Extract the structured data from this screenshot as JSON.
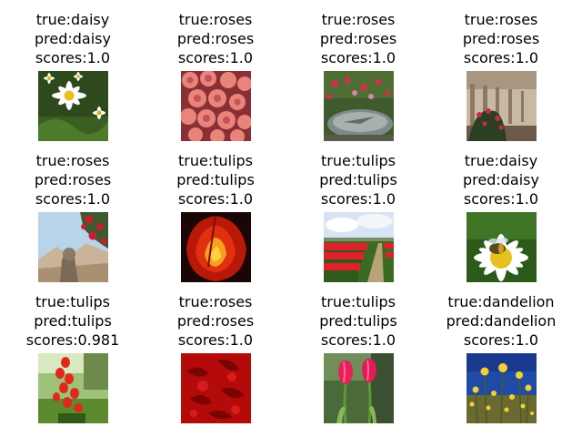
{
  "panels": [
    {
      "true_label": "true:daisy",
      "pred_label": "pred:daisy",
      "score_label": "scores:1.0",
      "image": "white-daisy-flowers-photo"
    },
    {
      "true_label": "true:roses",
      "pred_label": "pred:roses",
      "score_label": "scores:1.0",
      "image": "pink-rose-bouquet-photo"
    },
    {
      "true_label": "true:roses",
      "pred_label": "pred:roses",
      "score_label": "scores:1.0",
      "image": "sundial-garden-photo"
    },
    {
      "true_label": "true:roses",
      "pred_label": "pred:roses",
      "score_label": "scores:1.0",
      "image": "rose-bush-colonnade-photo"
    },
    {
      "true_label": "true:roses",
      "pred_label": "pred:roses",
      "score_label": "scores:1.0",
      "image": "red-roses-statue-photo"
    },
    {
      "true_label": "true:tulips",
      "pred_label": "pred:tulips",
      "score_label": "scores:1.0",
      "image": "red-tulip-closeup-photo"
    },
    {
      "true_label": "true:tulips",
      "pred_label": "pred:tulips",
      "score_label": "scores:1.0",
      "image": "tulip-field-rows-photo"
    },
    {
      "true_label": "true:daisy",
      "pred_label": "pred:daisy",
      "score_label": "scores:1.0",
      "image": "bee-on-daisy-photo"
    },
    {
      "true_label": "true:tulips",
      "pred_label": "pred:tulips",
      "score_label": "scores:0.981",
      "image": "red-tulip-garden-photo"
    },
    {
      "true_label": "true:roses",
      "pred_label": "pred:roses",
      "score_label": "scores:1.0",
      "image": "red-rose-petals-photo"
    },
    {
      "true_label": "true:tulips",
      "pred_label": "pred:tulips",
      "score_label": "scores:1.0",
      "image": "pink-tulips-pair-photo"
    },
    {
      "true_label": "true:dandelion",
      "pred_label": "pred:dandelion",
      "score_label": "scores:1.0",
      "image": "yellow-dandelion-meadow-photo"
    }
  ]
}
